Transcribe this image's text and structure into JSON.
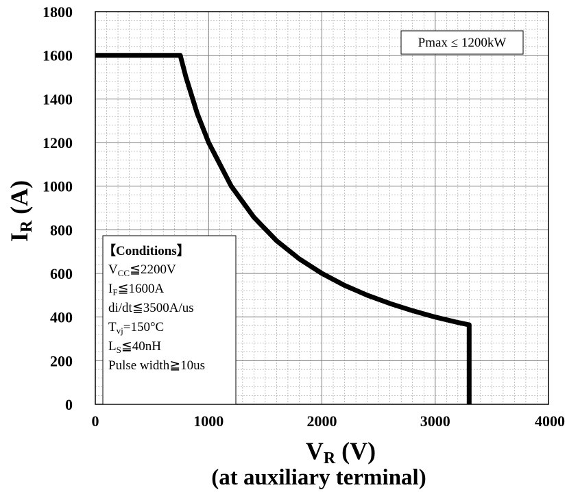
{
  "chart_data": {
    "type": "line",
    "x_label": {
      "main": "V",
      "sub": "R",
      "unit": " (V)"
    },
    "x_caption": "(at auxiliary terminal)",
    "y_label": {
      "main": "I",
      "sub": "R",
      "unit": " (A)"
    },
    "xlim": [
      0,
      4000
    ],
    "ylim": [
      0,
      1800
    ],
    "x_ticks": [
      "0",
      "1000",
      "2000",
      "3000",
      "4000"
    ],
    "y_ticks": [
      "0",
      "200",
      "400",
      "600",
      "800",
      "1000",
      "1200",
      "1400",
      "1600",
      "1800"
    ],
    "grid": true,
    "series": [
      {
        "x": [
          0,
          750,
          800,
          900,
          1000,
          1200,
          1400,
          1600,
          1800,
          2000,
          2200,
          2400,
          2600,
          2800,
          3000,
          3200,
          3300,
          3300
        ],
        "y": [
          1600,
          1600,
          1500,
          1333,
          1200,
          1000,
          857,
          750,
          667,
          600,
          545,
          500,
          462,
          429,
          400,
          375,
          364,
          0
        ],
        "color": "#000000"
      }
    ],
    "annotation_box": "Pmax ≤ 1200kW",
    "conditions": {
      "title": "【Conditions】",
      "lines": [
        {
          "main": "V",
          "sub": "CC",
          "rest": "≦2200V"
        },
        {
          "main": "I",
          "sub": "F",
          "rest": "≦1600A"
        },
        {
          "main": "di/dt≦3500A/us",
          "sub": "",
          "rest": ""
        },
        {
          "main": "T",
          "sub": "vj",
          "rest": "=150°C"
        },
        {
          "main": "L",
          "sub": "S",
          "rest": "≦40nH"
        },
        {
          "main": "Pulse width≧10us",
          "sub": "",
          "rest": ""
        }
      ]
    }
  }
}
